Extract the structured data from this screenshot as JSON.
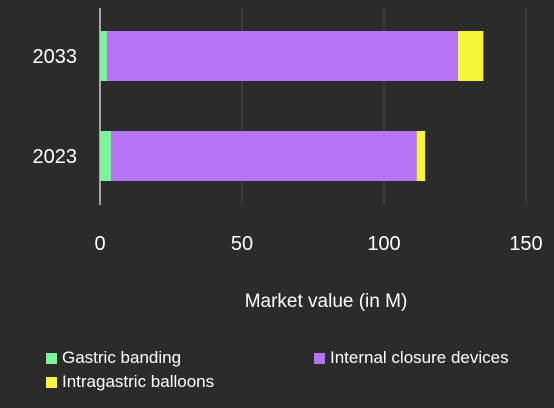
{
  "chart_data": {
    "type": "bar",
    "orientation": "horizontal",
    "stacked": true,
    "categories": [
      "2033",
      "2023"
    ],
    "series": [
      {
        "name": "Gastric banding",
        "color": "#7cf59a",
        "values": [
          2.5,
          4
        ]
      },
      {
        "name": "Internal closure devices",
        "color": "#b573f5",
        "values": [
          123.5,
          107.5
        ]
      },
      {
        "name": "Intragastric balloons",
        "color": "#f5f53b",
        "values": [
          9,
          3
        ]
      }
    ],
    "xlabel": "Market value (in M)",
    "ylabel": "",
    "xlim": [
      0,
      150
    ],
    "xticks": [
      "0",
      "50",
      "100",
      "150"
    ],
    "grid": true,
    "legend_position": "bottom"
  }
}
